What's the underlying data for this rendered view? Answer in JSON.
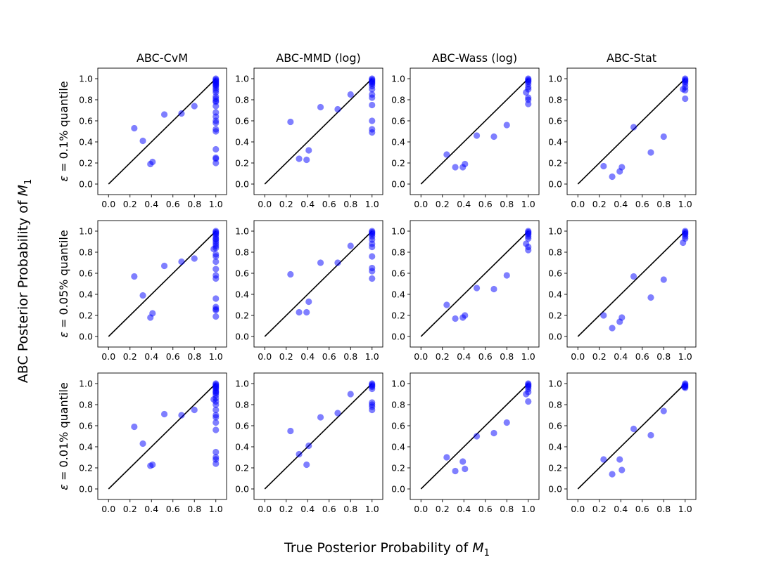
{
  "figure": {
    "xlabel_prefix": "True Posterior Probability of ",
    "ylabel_prefix": "ABC Posterior Probability of ",
    "var_main": "M",
    "var_sub": "1"
  },
  "colors": {
    "points": "#0000ff",
    "diagonal": "#000000"
  },
  "chart_data": {
    "type": "scatter",
    "column_titles": [
      "ABC-CvM",
      "ABC-MMD (log)",
      "ABC-Wass (log)",
      "ABC-Stat"
    ],
    "row_labels": [
      {
        "epsilon": "ε",
        "text": " = 0.1% quantile"
      },
      {
        "epsilon": "ε",
        "text": " = 0.05% quantile"
      },
      {
        "epsilon": "ε",
        "text": " = 0.01% quantile"
      }
    ],
    "xlim": [
      -0.1,
      1.1
    ],
    "ylim": [
      -0.1,
      1.1
    ],
    "ticks": [
      "0.0",
      "0.2",
      "0.4",
      "0.6",
      "0.8",
      "1.0"
    ],
    "reference_line": {
      "from": [
        0,
        0
      ],
      "to": [
        1,
        1
      ]
    },
    "panels": [
      [
        {
          "x": [
            0.24,
            0.32,
            0.39,
            0.41,
            0.52,
            0.68,
            0.8,
            1,
            1,
            1,
            1,
            1,
            1,
            1,
            1,
            1,
            1,
            1,
            1,
            1,
            1,
            1,
            1,
            1,
            1,
            1,
            1,
            1,
            1,
            1,
            1,
            1,
            1
          ],
          "y": [
            0.53,
            0.41,
            0.19,
            0.21,
            0.66,
            0.67,
            0.74,
            1.0,
            0.99,
            0.98,
            0.97,
            0.95,
            0.93,
            0.91,
            0.89,
            0.87,
            0.83,
            0.81,
            0.79,
            0.78,
            0.74,
            0.68,
            0.64,
            0.6,
            0.58,
            0.52,
            0.5,
            0.33,
            0.25,
            0.24,
            0.2,
            0.96,
            0.94
          ]
        },
        {
          "x": [
            0.24,
            0.32,
            0.39,
            0.41,
            0.52,
            0.68,
            0.8,
            1,
            1,
            1,
            1,
            1,
            1,
            1,
            1,
            1,
            1,
            1,
            1,
            1,
            1
          ],
          "y": [
            0.59,
            0.24,
            0.23,
            0.32,
            0.73,
            0.71,
            0.85,
            1.0,
            0.99,
            0.98,
            0.97,
            0.95,
            0.93,
            0.9,
            0.85,
            0.82,
            0.75,
            0.6,
            0.52,
            0.49,
            0.96
          ]
        },
        {
          "x": [
            0.24,
            0.32,
            0.39,
            0.41,
            0.52,
            0.68,
            0.8,
            1,
            1,
            1,
            1,
            1,
            1,
            1,
            1,
            1,
            1,
            0.98
          ],
          "y": [
            0.28,
            0.16,
            0.16,
            0.19,
            0.46,
            0.45,
            0.56,
            1.0,
            0.99,
            0.98,
            0.97,
            0.95,
            0.92,
            0.9,
            0.82,
            0.8,
            0.76,
            0.87
          ]
        },
        {
          "x": [
            0.24,
            0.32,
            0.39,
            0.41,
            0.52,
            0.68,
            0.8,
            1,
            1,
            1,
            1,
            1,
            1,
            1,
            1,
            0.98
          ],
          "y": [
            0.17,
            0.07,
            0.12,
            0.16,
            0.54,
            0.3,
            0.45,
            1.0,
            0.99,
            0.98,
            0.97,
            0.95,
            0.92,
            0.89,
            0.81,
            0.9
          ]
        }
      ],
      [
        {
          "x": [
            0.24,
            0.32,
            0.39,
            0.41,
            0.52,
            0.68,
            0.8,
            1,
            1,
            1,
            1,
            1,
            1,
            1,
            1,
            1,
            1,
            1,
            1,
            1,
            1,
            1,
            1,
            1,
            1,
            1,
            1,
            1,
            1,
            0.98
          ],
          "y": [
            0.57,
            0.39,
            0.18,
            0.22,
            0.67,
            0.71,
            0.74,
            1.0,
            0.99,
            0.98,
            0.97,
            0.95,
            0.93,
            0.9,
            0.88,
            0.86,
            0.84,
            0.78,
            0.76,
            0.71,
            0.64,
            0.58,
            0.55,
            0.36,
            0.28,
            0.26,
            0.25,
            0.19,
            0.92,
            0.83
          ]
        },
        {
          "x": [
            0.24,
            0.32,
            0.39,
            0.41,
            0.52,
            0.68,
            0.8,
            1,
            1,
            1,
            1,
            1,
            1,
            1,
            1,
            1,
            1,
            1,
            1
          ],
          "y": [
            0.59,
            0.23,
            0.23,
            0.33,
            0.7,
            0.7,
            0.86,
            1.0,
            0.99,
            0.98,
            0.97,
            0.95,
            0.92,
            0.88,
            0.85,
            0.76,
            0.65,
            0.62,
            0.55
          ]
        },
        {
          "x": [
            0.24,
            0.32,
            0.39,
            0.41,
            0.52,
            0.68,
            0.8,
            1,
            1,
            1,
            1,
            1,
            1,
            1,
            1,
            0.98
          ],
          "y": [
            0.3,
            0.17,
            0.18,
            0.2,
            0.46,
            0.45,
            0.58,
            1.0,
            0.99,
            0.98,
            0.97,
            0.95,
            0.93,
            0.85,
            0.82,
            0.88
          ]
        },
        {
          "x": [
            0.24,
            0.32,
            0.39,
            0.41,
            0.52,
            0.68,
            0.8,
            1,
            1,
            1,
            1,
            1,
            1,
            0.98
          ],
          "y": [
            0.2,
            0.08,
            0.14,
            0.18,
            0.57,
            0.37,
            0.54,
            1.0,
            0.99,
            0.98,
            0.97,
            0.95,
            0.93,
            0.89
          ]
        }
      ],
      [
        {
          "x": [
            0.24,
            0.32,
            0.39,
            0.41,
            0.52,
            0.68,
            0.8,
            1,
            1,
            1,
            1,
            1,
            1,
            1,
            1,
            1,
            1,
            1,
            1,
            1,
            1,
            1,
            1,
            1,
            1,
            1,
            1,
            1,
            1,
            0.98
          ],
          "y": [
            0.59,
            0.43,
            0.22,
            0.23,
            0.71,
            0.7,
            0.75,
            1.0,
            0.99,
            0.98,
            0.97,
            0.95,
            0.93,
            0.91,
            0.89,
            0.86,
            0.83,
            0.8,
            0.75,
            0.7,
            0.68,
            0.63,
            0.56,
            0.35,
            0.3,
            0.28,
            0.24,
            0.96,
            0.92,
            0.85
          ]
        },
        {
          "x": [
            0.24,
            0.32,
            0.39,
            0.41,
            0.52,
            0.68,
            0.8,
            1,
            1,
            1,
            1,
            1,
            1,
            1,
            1,
            1
          ],
          "y": [
            0.55,
            0.33,
            0.23,
            0.41,
            0.68,
            0.72,
            0.9,
            1.0,
            0.99,
            0.98,
            0.97,
            0.95,
            0.82,
            0.8,
            0.78,
            0.75
          ]
        },
        {
          "x": [
            0.24,
            0.32,
            0.39,
            0.41,
            0.52,
            0.68,
            0.8,
            1,
            1,
            1,
            1,
            1,
            1,
            1,
            0.98
          ],
          "y": [
            0.3,
            0.17,
            0.26,
            0.19,
            0.5,
            0.53,
            0.63,
            1.0,
            0.99,
            0.98,
            0.97,
            0.95,
            0.92,
            0.83,
            0.9
          ]
        },
        {
          "x": [
            0.24,
            0.32,
            0.39,
            0.41,
            0.52,
            0.68,
            0.8,
            1,
            1,
            1,
            1,
            1,
            0.99
          ],
          "y": [
            0.28,
            0.14,
            0.28,
            0.18,
            0.57,
            0.51,
            0.74,
            1.0,
            0.99,
            0.98,
            0.97,
            0.96,
            0.97
          ]
        }
      ]
    ]
  }
}
